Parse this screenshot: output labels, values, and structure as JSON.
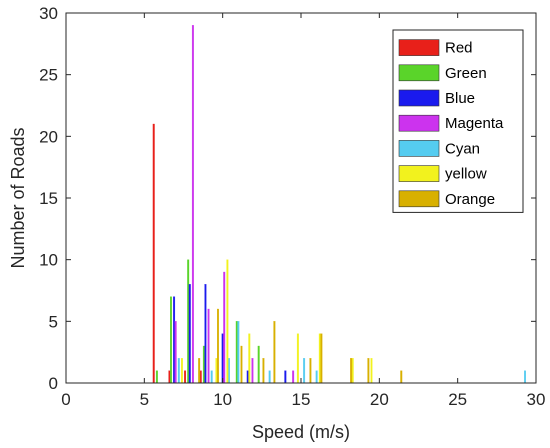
{
  "chart_data": {
    "type": "bar",
    "title": "",
    "xlabel": "Speed (m/s)",
    "ylabel": "Number of Roads",
    "xlim": [
      0,
      30
    ],
    "ylim": [
      0,
      30
    ],
    "xticks": [
      0,
      5,
      10,
      15,
      20,
      25,
      30
    ],
    "yticks": [
      0,
      5,
      10,
      15,
      20,
      25,
      30
    ],
    "grid": false,
    "legend_position": "top-right",
    "series": [
      {
        "name": "Red",
        "color": "#e8201a",
        "bars": [
          [
            5.6,
            21
          ],
          [
            6.6,
            1
          ],
          [
            7.6,
            1
          ],
          [
            8.6,
            1
          ]
        ]
      },
      {
        "name": "Green",
        "color": "#5ad42a",
        "bars": [
          [
            5.8,
            1
          ],
          [
            6.7,
            7
          ],
          [
            7.8,
            10
          ],
          [
            8.8,
            3
          ],
          [
            10.9,
            5
          ],
          [
            12.3,
            3
          ]
        ]
      },
      {
        "name": "Blue",
        "color": "#1a1aee",
        "bars": [
          [
            6.9,
            7
          ],
          [
            7.9,
            8
          ],
          [
            8.9,
            8
          ],
          [
            10.0,
            4
          ],
          [
            11.6,
            1
          ],
          [
            14.0,
            1
          ]
        ]
      },
      {
        "name": "Magenta",
        "color": "#cc33ee",
        "bars": [
          [
            7.0,
            5
          ],
          [
            8.1,
            29
          ],
          [
            9.1,
            6
          ],
          [
            10.1,
            9
          ],
          [
            11.9,
            2
          ],
          [
            14.5,
            1
          ]
        ]
      },
      {
        "name": "Cyan",
        "color": "#55ccf0",
        "bars": [
          [
            7.2,
            2
          ],
          [
            9.3,
            1
          ],
          [
            10.4,
            2
          ],
          [
            11.0,
            5
          ],
          [
            13.0,
            1
          ],
          [
            15.2,
            2
          ],
          [
            16.0,
            1
          ],
          [
            29.3,
            1
          ]
        ]
      },
      {
        "name": "yellow",
        "color": "#f2f21e",
        "bars": [
          [
            7.4,
            2
          ],
          [
            9.6,
            2
          ],
          [
            10.3,
            10
          ],
          [
            11.7,
            4
          ],
          [
            14.8,
            4
          ],
          [
            16.2,
            4
          ],
          [
            18.3,
            2
          ],
          [
            19.5,
            2
          ]
        ]
      },
      {
        "name": "Orange",
        "color": "#d8b000",
        "bars": [
          [
            8.5,
            2
          ],
          [
            9.7,
            6
          ],
          [
            11.2,
            3
          ],
          [
            12.6,
            2
          ],
          [
            13.3,
            5
          ],
          [
            15.6,
            2
          ],
          [
            16.3,
            4
          ],
          [
            18.2,
            2
          ],
          [
            19.3,
            2
          ],
          [
            21.4,
            1
          ]
        ]
      }
    ]
  }
}
